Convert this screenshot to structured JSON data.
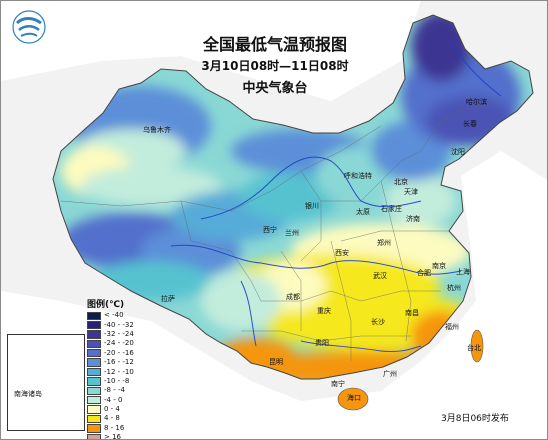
{
  "title": "全国最低气温预报图",
  "subtitle": "3月10日08时—11日08时",
  "agency": "中央气象台",
  "footer": "3月8日06时发布",
  "legend": {
    "title": "图例(℃)",
    "items": [
      {
        "label": "< -40",
        "color": "#0b1e4d"
      },
      {
        "label": "-40 - -32",
        "color": "#2a1f7a"
      },
      {
        "label": "-32 - -24",
        "color": "#3c3592"
      },
      {
        "label": "-24 - -20",
        "color": "#4b52b5"
      },
      {
        "label": "-20 - -16",
        "color": "#5270cc"
      },
      {
        "label": "-16 - -12",
        "color": "#5b8fd8"
      },
      {
        "label": "-12 - -10",
        "color": "#57abd8"
      },
      {
        "label": "-10 - -8",
        "color": "#57c2d0"
      },
      {
        "label": "-8 - -4",
        "color": "#8ad8d5"
      },
      {
        "label": "-4 - 0",
        "color": "#c2ecdc"
      },
      {
        "label": "0 - 4",
        "color": "#fdfbbf"
      },
      {
        "label": "4 - 8",
        "color": "#f5e81a"
      },
      {
        "label": "8 - 16",
        "color": "#f59510"
      },
      {
        "label": "> 16",
        "color": "#d4a19a"
      }
    ]
  },
  "inset": {
    "label": "南海诸岛"
  },
  "cities": [
    {
      "name": "乌鲁木齐"
    },
    {
      "name": "哈尔滨"
    },
    {
      "name": "长春"
    },
    {
      "name": "沈阳"
    },
    {
      "name": "北京"
    },
    {
      "name": "天津"
    },
    {
      "name": "石家庄"
    },
    {
      "name": "太原"
    },
    {
      "name": "济南"
    },
    {
      "name": "呼和浩特"
    },
    {
      "name": "银川"
    },
    {
      "name": "兰州"
    },
    {
      "name": "西宁"
    },
    {
      "name": "西安"
    },
    {
      "name": "郑州"
    },
    {
      "name": "合肥"
    },
    {
      "name": "南京"
    },
    {
      "name": "上海"
    },
    {
      "name": "杭州"
    },
    {
      "name": "武汉"
    },
    {
      "name": "成都"
    },
    {
      "name": "重庆"
    },
    {
      "name": "长沙"
    },
    {
      "name": "南昌"
    },
    {
      "name": "福州"
    },
    {
      "name": "贵阳"
    },
    {
      "name": "昆明"
    },
    {
      "name": "南宁"
    },
    {
      "name": "广州"
    },
    {
      "name": "拉萨"
    },
    {
      "name": "台北"
    },
    {
      "name": "海口"
    }
  ]
}
